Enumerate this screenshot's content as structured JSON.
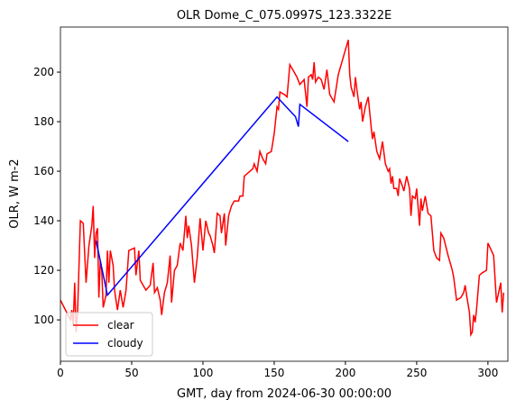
{
  "chart_data": {
    "type": "line",
    "title": "OLR Dome_C_075.0997S_123.3322E",
    "x_label": "GMT, day from 2024-06-30 00:00:00",
    "y_label": "OLR, W m-2",
    "xlim": [
      0,
      314
    ],
    "ylim": [
      83.3,
      218.2
    ],
    "xticks": [
      0,
      50,
      100,
      150,
      200,
      250,
      300
    ],
    "yticks": [
      100,
      120,
      140,
      160,
      180,
      200
    ],
    "legend": "lower left",
    "series": [
      {
        "name": "clear",
        "color": "#ff0000",
        "x": [
          0,
          7,
          8,
          9,
          10,
          11,
          12,
          14,
          16,
          18,
          20,
          22,
          23,
          24,
          25,
          26,
          27,
          28,
          29,
          30,
          32,
          33,
          34,
          35,
          37,
          38,
          40,
          42,
          44,
          46,
          48,
          52,
          53,
          55,
          56,
          60,
          63,
          65,
          66,
          68,
          70,
          71,
          73,
          75,
          77,
          78,
          80,
          82,
          84,
          86,
          88,
          89,
          90,
          92,
          94,
          96,
          98,
          100,
          102,
          104,
          105,
          107,
          108,
          110,
          112,
          113,
          115,
          116,
          118,
          120,
          122,
          125,
          126,
          128,
          129,
          133,
          135,
          136,
          138,
          140,
          142,
          144,
          145,
          148,
          150,
          152,
          153,
          154,
          157,
          159,
          161,
          163,
          166,
          168,
          171,
          173,
          174,
          176,
          177,
          178,
          179,
          181,
          183,
          185,
          187,
          189,
          190,
          192,
          195,
          199,
          202,
          203,
          204,
          206,
          207,
          208,
          210,
          211,
          212,
          214,
          216,
          218,
          219,
          220,
          222,
          224,
          226,
          228,
          230,
          231,
          232,
          233,
          234,
          236,
          237,
          238,
          240,
          241,
          243,
          245,
          246,
          247,
          249,
          250,
          252,
          253,
          254,
          256,
          258,
          260,
          262,
          264,
          266,
          267,
          269,
          272,
          275,
          276,
          278,
          281,
          283,
          284,
          285,
          287,
          288,
          289,
          290,
          291,
          292,
          294,
          296,
          299,
          300,
          304,
          306,
          309,
          310,
          311
        ],
        "values": [
          108,
          100,
          104,
          98,
          115,
          95,
          103,
          140,
          139,
          115,
          130,
          138,
          146,
          125,
          135,
          137,
          109,
          124,
          120,
          105,
          110,
          128,
          115,
          128,
          122,
          112,
          104,
          112,
          105,
          112,
          128,
          129,
          118,
          128,
          116,
          112,
          114,
          123,
          111,
          113,
          108,
          102,
          111,
          115,
          126,
          107,
          120,
          122,
          131,
          128,
          142,
          133,
          138,
          130,
          115,
          125,
          141,
          128,
          140,
          135,
          134,
          130,
          127,
          143,
          142,
          135,
          143,
          130,
          142,
          146,
          148,
          148,
          150,
          150,
          158,
          160,
          161,
          163,
          160,
          168,
          165,
          163,
          167,
          168,
          175,
          186,
          185,
          192,
          191,
          190,
          203,
          201,
          198,
          195,
          197,
          186,
          198,
          199,
          197,
          204,
          196,
          198,
          197,
          193,
          201,
          191,
          190,
          188,
          199,
          207,
          213,
          199,
          194,
          190,
          198,
          193,
          185,
          188,
          180,
          186,
          190,
          178,
          173,
          176,
          168,
          165,
          172,
          163,
          160,
          161,
          155,
          158,
          153,
          153,
          150,
          157,
          154,
          152,
          158,
          153,
          142,
          150,
          149,
          153,
          138,
          149,
          144,
          150,
          143,
          142,
          128,
          125,
          124,
          135,
          133,
          126,
          120,
          117,
          108,
          109,
          111,
          114,
          110,
          103,
          94,
          95,
          102,
          99,
          104,
          118,
          119,
          120,
          131,
          126,
          107,
          115,
          103,
          111
        ]
      },
      {
        "name": "cloudy",
        "color": "#0000ff",
        "x": [
          25,
          33,
          152,
          165,
          167,
          168,
          202
        ],
        "values": [
          132,
          110,
          190,
          182,
          178,
          187,
          172
        ]
      }
    ]
  }
}
